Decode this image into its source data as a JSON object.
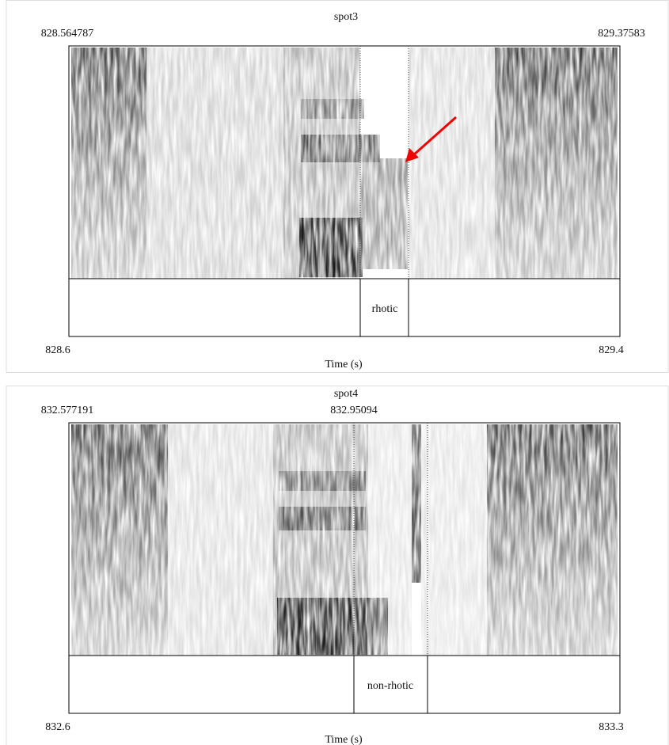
{
  "panels": [
    {
      "title": "spot3",
      "start_label": "828.564787",
      "end_label": "829.37583",
      "axis_start": "828.6",
      "axis_end": "829.4",
      "x_label": "Time (s)",
      "interval_label": "rhotic"
    },
    {
      "title": "spot4",
      "start_label": "832.577191",
      "cursor_label": "832.95094",
      "axis_start": "832.6",
      "axis_end": "833.3",
      "x_label": "Time (s)",
      "interval_label": "non-rhotic"
    }
  ]
}
